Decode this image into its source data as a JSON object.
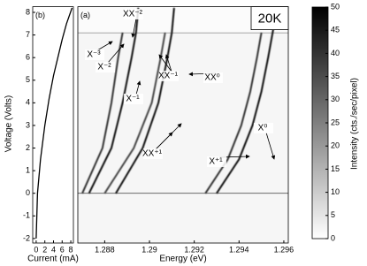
{
  "chart_data": [
    {
      "type": "line",
      "panel_label": "(b)",
      "x_label": "Current (mA)",
      "y_label": "Voltage (Volts)",
      "xlim": [
        -0.8,
        8.6
      ],
      "ylim": [
        -2.2,
        8.25
      ],
      "xticks": [
        0,
        2,
        4,
        6,
        8
      ],
      "yticks": [
        -2,
        -1,
        0,
        1,
        2,
        3,
        4,
        5,
        6,
        7,
        8
      ],
      "series": [
        {
          "color": "#000000",
          "x": [
            0,
            0.3,
            1,
            2,
            3,
            4,
            5,
            6,
            7,
            8.3
          ],
          "values": [
            -2,
            0,
            1.5,
            3,
            4.2,
            5.2,
            6,
            6.8,
            7.5,
            8.2
          ]
        }
      ]
    },
    {
      "type": "line",
      "panel_label": "(a)",
      "x_label": "Energy (eV)",
      "temperature_label": "20K",
      "xlim": [
        1.2868,
        1.2962
      ],
      "ylim": [
        -2.2,
        8.25
      ],
      "xticks": [
        1.288,
        1.29,
        1.292,
        1.294,
        1.296
      ],
      "hlines": [
        0,
        7.1
      ],
      "series": [
        {
          "color": "#111111",
          "x": [
            1.293,
            1.294,
            1.2946,
            1.295,
            1.2953,
            1.2955,
            1.2957
          ],
          "values": [
            0,
            1.5,
            3,
            4.5,
            6,
            7.1,
            8.2
          ]
        },
        {
          "color": "#333333",
          "x": [
            1.2925,
            1.2935,
            1.2941,
            1.2945,
            1.2948,
            1.295
          ],
          "values": [
            0,
            1.5,
            3,
            4.5,
            6,
            7.1
          ]
        },
        {
          "color": "#111111",
          "x": [
            1.2885,
            1.2897,
            1.2904,
            1.2908,
            1.291,
            1.2911
          ],
          "values": [
            0,
            2,
            4,
            6,
            7.1,
            8.2
          ]
        },
        {
          "color": "#444444",
          "x": [
            1.288,
            1.2893,
            1.2901,
            1.2905,
            1.2907
          ],
          "values": [
            0,
            2,
            4,
            6,
            7.1
          ]
        },
        {
          "color": "#111111",
          "x": [
            1.2873,
            1.2883,
            1.2888,
            1.2892,
            1.2894,
            1.2895
          ],
          "values": [
            0,
            2,
            4,
            6,
            7.1,
            8.2
          ]
        },
        {
          "color": "#333333",
          "x": [
            1.287,
            1.2879,
            1.2883,
            1.2886,
            1.2888
          ],
          "values": [
            0,
            2,
            4,
            6,
            7.1
          ]
        }
      ],
      "annotations": [
        {
          "text": "X⁻³"
        },
        {
          "text": "X⁻²"
        },
        {
          "text": "XX⁻²"
        },
        {
          "text": "X⁻¹"
        },
        {
          "text": "XX⁻¹"
        },
        {
          "text": "XX⁰"
        },
        {
          "text": "XX⁺¹"
        },
        {
          "text": "X⁺¹"
        },
        {
          "text": "X⁰"
        }
      ],
      "colorbar": {
        "label": "Intensity (cts./sec/pixel)",
        "lim": [
          0,
          50
        ],
        "ticks": [
          0,
          5,
          10,
          15,
          20,
          25,
          30,
          35,
          40,
          45,
          50
        ],
        "colors": [
          "#ffffff",
          "#000000"
        ]
      }
    }
  ]
}
